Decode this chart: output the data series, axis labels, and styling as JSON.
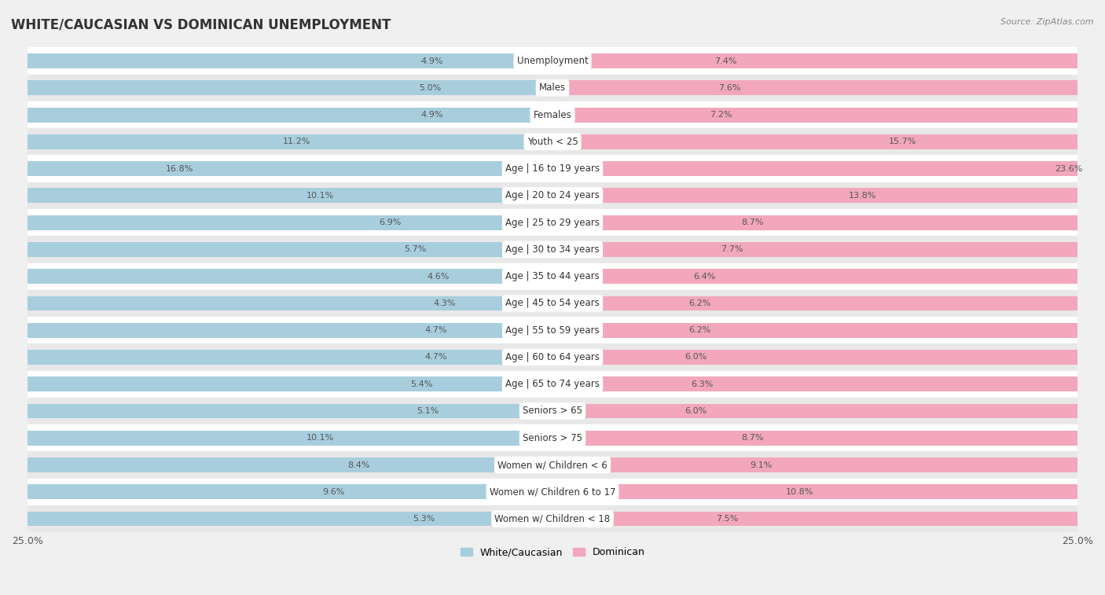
{
  "title": "WHITE/CAUCASIAN VS DOMINICAN UNEMPLOYMENT",
  "source": "Source: ZipAtlas.com",
  "categories": [
    "Unemployment",
    "Males",
    "Females",
    "Youth < 25",
    "Age | 16 to 19 years",
    "Age | 20 to 24 years",
    "Age | 25 to 29 years",
    "Age | 30 to 34 years",
    "Age | 35 to 44 years",
    "Age | 45 to 54 years",
    "Age | 55 to 59 years",
    "Age | 60 to 64 years",
    "Age | 65 to 74 years",
    "Seniors > 65",
    "Seniors > 75",
    "Women w/ Children < 6",
    "Women w/ Children 6 to 17",
    "Women w/ Children < 18"
  ],
  "white_values": [
    4.9,
    5.0,
    4.9,
    11.2,
    16.8,
    10.1,
    6.9,
    5.7,
    4.6,
    4.3,
    4.7,
    4.7,
    5.4,
    5.1,
    10.1,
    8.4,
    9.6,
    5.3
  ],
  "dominican_values": [
    7.4,
    7.6,
    7.2,
    15.7,
    23.6,
    13.8,
    8.7,
    7.7,
    6.4,
    6.2,
    6.2,
    6.0,
    6.3,
    6.0,
    8.7,
    9.1,
    10.8,
    7.5
  ],
  "white_color": "#A8CEDE",
  "dominican_color": "#F2A7BC",
  "white_label": "White/Caucasian",
  "dominican_label": "Dominican",
  "axis_limit": 25.0,
  "bg_color": "#f0f0f0",
  "row_color_light": "#ffffff",
  "row_color_dark": "#e8e8e8",
  "title_fontsize": 12,
  "label_fontsize": 8.5,
  "value_fontsize": 8.0
}
